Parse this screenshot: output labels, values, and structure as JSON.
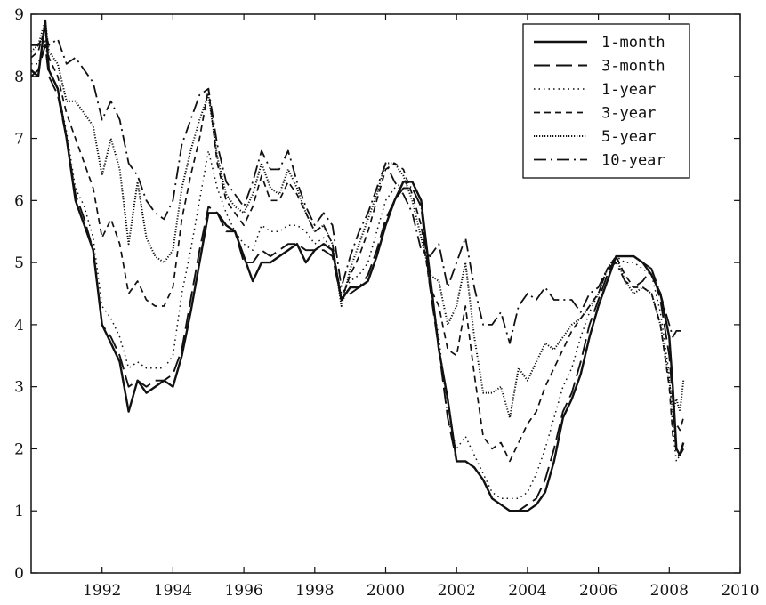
{
  "chart_data": {
    "type": "line",
    "title": "",
    "xlabel": "",
    "ylabel": "",
    "xlim": [
      1990,
      2010
    ],
    "ylim": [
      0,
      9
    ],
    "xticks": [
      1992,
      1994,
      1996,
      1998,
      2000,
      2002,
      2004,
      2006,
      2008,
      2010
    ],
    "yticks": [
      0,
      1,
      2,
      3,
      4,
      5,
      6,
      7,
      8,
      9
    ],
    "grid": false,
    "legend_position": "top-right",
    "series": [
      {
        "name": "1-month",
        "x": [
          1990.0,
          1990.2,
          1990.4,
          1990.5,
          1990.75,
          1991.0,
          1991.25,
          1991.5,
          1991.75,
          1992.0,
          1992.25,
          1992.5,
          1992.75,
          1993.0,
          1993.25,
          1993.5,
          1993.75,
          1994.0,
          1994.25,
          1994.5,
          1994.75,
          1995.0,
          1995.25,
          1995.5,
          1995.75,
          1996.0,
          1996.25,
          1996.5,
          1996.75,
          1997.0,
          1997.25,
          1997.5,
          1997.75,
          1998.0,
          1998.25,
          1998.5,
          1998.75,
          1999.0,
          1999.25,
          1999.5,
          1999.75,
          2000.0,
          2000.25,
          2000.5,
          2000.75,
          2001.0,
          2001.25,
          2001.5,
          2001.75,
          2002.0,
          2002.25,
          2002.5,
          2002.75,
          2003.0,
          2003.25,
          2003.5,
          2003.75,
          2004.0,
          2004.25,
          2004.5,
          2004.75,
          2005.0,
          2005.25,
          2005.5,
          2005.75,
          2006.0,
          2006.25,
          2006.5,
          2006.75,
          2007.0,
          2007.25,
          2007.5,
          2007.75,
          2008.0,
          2008.1,
          2008.2,
          2008.3,
          2008.4
        ],
        "values": [
          8.1,
          8.0,
          8.9,
          8.1,
          7.8,
          7.0,
          6.0,
          5.6,
          5.2,
          4.0,
          3.7,
          3.4,
          2.6,
          3.1,
          2.9,
          3.0,
          3.1,
          3.0,
          3.5,
          4.2,
          5.0,
          5.8,
          5.8,
          5.6,
          5.5,
          5.1,
          4.7,
          5.0,
          5.0,
          5.1,
          5.2,
          5.3,
          5.0,
          5.2,
          5.3,
          5.2,
          4.4,
          4.6,
          4.6,
          4.7,
          5.1,
          5.6,
          6.0,
          6.3,
          6.3,
          6.0,
          4.8,
          3.6,
          2.8,
          1.8,
          1.8,
          1.7,
          1.5,
          1.2,
          1.1,
          1.0,
          1.0,
          1.0,
          1.1,
          1.3,
          1.8,
          2.5,
          2.8,
          3.2,
          3.8,
          4.3,
          4.7,
          5.1,
          5.1,
          5.1,
          5.0,
          4.8,
          4.5,
          3.8,
          3.0,
          2.0,
          1.9,
          2.1
        ]
      },
      {
        "name": "3-month",
        "x": [
          1990.0,
          1990.2,
          1990.4,
          1990.5,
          1990.75,
          1991.0,
          1991.25,
          1991.5,
          1991.75,
          1992.0,
          1992.25,
          1992.5,
          1992.75,
          1993.0,
          1993.25,
          1993.5,
          1993.75,
          1994.0,
          1994.25,
          1994.5,
          1994.75,
          1995.0,
          1995.25,
          1995.5,
          1995.75,
          1996.0,
          1996.25,
          1996.5,
          1996.75,
          1997.0,
          1997.25,
          1997.5,
          1997.75,
          1998.0,
          1998.25,
          1998.5,
          1998.75,
          1999.0,
          1999.25,
          1999.5,
          1999.75,
          2000.0,
          2000.25,
          2000.5,
          2000.75,
          2001.0,
          2001.25,
          2001.5,
          2001.75,
          2002.0,
          2002.25,
          2002.5,
          2002.75,
          2003.0,
          2003.25,
          2003.5,
          2003.75,
          2004.0,
          2004.25,
          2004.5,
          2004.75,
          2005.0,
          2005.25,
          2005.5,
          2005.75,
          2006.0,
          2006.25,
          2006.5,
          2006.75,
          2007.0,
          2007.25,
          2007.5,
          2007.75,
          2008.0,
          2008.1,
          2008.2,
          2008.3,
          2008.4
        ],
        "values": [
          8.0,
          8.1,
          8.5,
          8.0,
          7.7,
          7.0,
          6.1,
          5.7,
          5.2,
          4.0,
          3.8,
          3.5,
          3.0,
          3.1,
          3.0,
          3.1,
          3.1,
          3.2,
          3.6,
          4.4,
          5.2,
          5.9,
          5.8,
          5.5,
          5.5,
          5.0,
          5.0,
          5.2,
          5.1,
          5.2,
          5.3,
          5.3,
          5.2,
          5.2,
          5.2,
          5.1,
          4.4,
          4.5,
          4.6,
          4.8,
          5.2,
          5.7,
          6.0,
          6.2,
          6.2,
          5.9,
          4.6,
          3.6,
          2.5,
          1.8,
          1.8,
          1.7,
          1.5,
          1.2,
          1.1,
          1.0,
          1.0,
          1.1,
          1.2,
          1.5,
          2.0,
          2.6,
          2.9,
          3.4,
          4.0,
          4.4,
          4.8,
          5.1,
          5.1,
          5.1,
          5.0,
          4.9,
          4.4,
          3.5,
          2.8,
          1.9,
          1.9,
          2.0
        ]
      },
      {
        "name": "1-year",
        "x": [
          1990.0,
          1990.2,
          1990.4,
          1990.5,
          1990.75,
          1991.0,
          1991.25,
          1991.5,
          1991.75,
          1992.0,
          1992.25,
          1992.5,
          1992.75,
          1993.0,
          1993.25,
          1993.5,
          1993.75,
          1994.0,
          1994.25,
          1994.5,
          1994.75,
          1995.0,
          1995.25,
          1995.5,
          1995.75,
          1996.0,
          1996.25,
          1996.5,
          1996.75,
          1997.0,
          1997.25,
          1997.5,
          1997.75,
          1998.0,
          1998.25,
          1998.5,
          1998.75,
          1999.0,
          1999.25,
          1999.5,
          1999.75,
          2000.0,
          2000.25,
          2000.5,
          2000.75,
          2001.0,
          2001.25,
          2001.5,
          2001.75,
          2002.0,
          2002.25,
          2002.5,
          2002.75,
          2003.0,
          2003.25,
          2003.5,
          2003.75,
          2004.0,
          2004.25,
          2004.5,
          2004.75,
          2005.0,
          2005.25,
          2005.5,
          2005.75,
          2006.0,
          2006.25,
          2006.5,
          2006.75,
          2007.0,
          2007.25,
          2007.5,
          2007.75,
          2008.0,
          2008.1,
          2008.2,
          2008.3,
          2008.4
        ],
        "values": [
          8.2,
          8.2,
          8.6,
          8.1,
          7.8,
          7.1,
          6.2,
          5.9,
          5.4,
          4.3,
          4.1,
          3.8,
          3.3,
          3.4,
          3.3,
          3.3,
          3.3,
          3.5,
          4.5,
          5.2,
          6.0,
          6.8,
          6.2,
          5.8,
          5.5,
          5.3,
          5.2,
          5.6,
          5.5,
          5.5,
          5.6,
          5.6,
          5.5,
          5.3,
          5.4,
          5.2,
          4.5,
          4.7,
          4.8,
          5.0,
          5.5,
          6.0,
          6.2,
          6.3,
          6.2,
          5.9,
          4.6,
          3.8,
          2.5,
          2.0,
          2.2,
          1.9,
          1.6,
          1.3,
          1.2,
          1.2,
          1.2,
          1.3,
          1.6,
          2.0,
          2.5,
          3.0,
          3.3,
          3.8,
          4.2,
          4.5,
          4.9,
          5.1,
          5.0,
          5.0,
          4.9,
          4.8,
          4.2,
          3.2,
          2.3,
          1.8,
          1.9,
          2.0
        ]
      },
      {
        "name": "3-year",
        "x": [
          1990.0,
          1990.2,
          1990.4,
          1990.5,
          1990.75,
          1991.0,
          1991.25,
          1991.5,
          1991.75,
          1992.0,
          1992.25,
          1992.5,
          1992.75,
          1993.0,
          1993.25,
          1993.5,
          1993.75,
          1994.0,
          1994.25,
          1994.5,
          1994.75,
          1995.0,
          1995.25,
          1995.5,
          1995.75,
          1996.0,
          1996.25,
          1996.5,
          1996.75,
          1997.0,
          1997.25,
          1997.5,
          1997.75,
          1998.0,
          1998.25,
          1998.5,
          1998.75,
          1999.0,
          1999.25,
          1999.5,
          1999.75,
          2000.0,
          2000.25,
          2000.5,
          2000.75,
          2001.0,
          2001.25,
          2001.5,
          2001.75,
          2002.0,
          2002.25,
          2002.5,
          2002.75,
          2003.0,
          2003.25,
          2003.5,
          2003.75,
          2004.0,
          2004.25,
          2004.5,
          2004.75,
          2005.0,
          2005.25,
          2005.5,
          2005.75,
          2006.0,
          2006.25,
          2006.5,
          2006.75,
          2007.0,
          2007.25,
          2007.5,
          2007.75,
          2008.0,
          2008.1,
          2008.2,
          2008.3,
          2008.4
        ],
        "values": [
          8.3,
          8.4,
          8.8,
          8.3,
          8.0,
          7.4,
          7.0,
          6.6,
          6.2,
          5.4,
          5.7,
          5.3,
          4.5,
          4.7,
          4.4,
          4.3,
          4.3,
          4.6,
          5.7,
          6.4,
          7.0,
          7.8,
          6.6,
          6.0,
          5.8,
          5.6,
          5.9,
          6.4,
          6.0,
          6.0,
          6.3,
          6.1,
          5.8,
          5.5,
          5.6,
          5.3,
          4.4,
          4.8,
          5.1,
          5.5,
          6.0,
          6.5,
          6.6,
          6.5,
          6.1,
          5.6,
          4.6,
          4.3,
          3.6,
          3.5,
          4.3,
          3.2,
          2.2,
          2.0,
          2.1,
          1.8,
          2.1,
          2.4,
          2.6,
          3.0,
          3.3,
          3.6,
          3.9,
          4.1,
          4.3,
          4.5,
          4.9,
          5.1,
          4.8,
          4.6,
          4.6,
          4.5,
          4.0,
          3.0,
          2.2,
          2.4,
          2.3,
          2.5
        ]
      },
      {
        "name": "5-year",
        "x": [
          1990.0,
          1990.2,
          1990.4,
          1990.5,
          1990.75,
          1991.0,
          1991.25,
          1991.5,
          1991.75,
          1992.0,
          1992.25,
          1992.5,
          1992.75,
          1993.0,
          1993.25,
          1993.5,
          1993.75,
          1994.0,
          1994.25,
          1994.5,
          1994.75,
          1995.0,
          1995.25,
          1995.5,
          1995.75,
          1996.0,
          1996.25,
          1996.5,
          1996.75,
          1997.0,
          1997.25,
          1997.5,
          1997.75,
          1998.0,
          1998.25,
          1998.5,
          1998.75,
          1999.0,
          1999.25,
          1999.5,
          1999.75,
          2000.0,
          2000.25,
          2000.5,
          2000.75,
          2001.0,
          2001.25,
          2001.5,
          2001.75,
          2002.0,
          2002.25,
          2002.5,
          2002.75,
          2003.0,
          2003.25,
          2003.5,
          2003.75,
          2004.0,
          2004.25,
          2004.5,
          2004.75,
          2005.0,
          2005.25,
          2005.5,
          2005.75,
          2006.0,
          2006.25,
          2006.5,
          2006.75,
          2007.0,
          2007.25,
          2007.5,
          2007.75,
          2008.0,
          2008.1,
          2008.2,
          2008.3,
          2008.4
        ],
        "values": [
          8.4,
          8.5,
          8.9,
          8.4,
          8.2,
          7.6,
          7.6,
          7.4,
          7.2,
          6.4,
          7.0,
          6.5,
          5.3,
          6.3,
          5.4,
          5.1,
          5.0,
          5.2,
          6.2,
          6.8,
          7.3,
          7.7,
          6.7,
          6.1,
          5.9,
          5.8,
          6.1,
          6.6,
          6.2,
          6.1,
          6.5,
          6.2,
          5.8,
          5.5,
          5.6,
          5.3,
          4.3,
          4.9,
          5.3,
          5.7,
          6.1,
          6.6,
          6.6,
          6.4,
          6.0,
          5.4,
          4.8,
          4.7,
          4.0,
          4.3,
          5.0,
          3.8,
          2.9,
          2.9,
          3.0,
          2.5,
          3.3,
          3.1,
          3.4,
          3.7,
          3.6,
          3.8,
          4.0,
          4.1,
          4.3,
          4.5,
          4.9,
          5.1,
          4.7,
          4.5,
          4.6,
          4.5,
          4.0,
          3.1,
          2.6,
          2.8,
          2.6,
          3.1
        ]
      },
      {
        "name": "10-year",
        "x": [
          1990.0,
          1990.2,
          1990.4,
          1990.5,
          1990.75,
          1991.0,
          1991.25,
          1991.5,
          1991.75,
          1992.0,
          1992.25,
          1992.5,
          1992.75,
          1993.0,
          1993.25,
          1993.5,
          1993.75,
          1994.0,
          1994.25,
          1994.5,
          1994.75,
          1995.0,
          1995.25,
          1995.5,
          1995.75,
          1996.0,
          1996.25,
          1996.5,
          1996.75,
          1997.0,
          1997.25,
          1997.5,
          1997.75,
          1998.0,
          1998.25,
          1998.5,
          1998.75,
          1999.0,
          1999.25,
          1999.5,
          1999.75,
          2000.0,
          2000.25,
          2000.5,
          2000.75,
          2001.0,
          2001.25,
          2001.5,
          2001.75,
          2002.0,
          2002.25,
          2002.5,
          2002.75,
          2003.0,
          2003.25,
          2003.5,
          2003.75,
          2004.0,
          2004.25,
          2004.5,
          2004.75,
          2005.0,
          2005.25,
          2005.5,
          2005.75,
          2006.0,
          2006.25,
          2006.5,
          2006.75,
          2007.0,
          2007.25,
          2007.5,
          2007.75,
          2008.0,
          2008.1,
          2008.2,
          2008.3,
          2008.4
        ],
        "values": [
          8.5,
          8.5,
          8.7,
          8.5,
          8.6,
          8.2,
          8.3,
          8.1,
          7.9,
          7.3,
          7.6,
          7.3,
          6.6,
          6.4,
          6.0,
          5.8,
          5.7,
          6.0,
          6.9,
          7.3,
          7.7,
          7.8,
          6.9,
          6.3,
          6.1,
          5.9,
          6.3,
          6.8,
          6.5,
          6.5,
          6.8,
          6.3,
          5.9,
          5.6,
          5.8,
          5.6,
          4.6,
          5.1,
          5.5,
          5.8,
          6.2,
          6.6,
          6.3,
          6.1,
          5.8,
          5.2,
          5.1,
          5.3,
          4.6,
          5.0,
          5.4,
          4.6,
          4.0,
          4.0,
          4.2,
          3.7,
          4.3,
          4.5,
          4.4,
          4.6,
          4.4,
          4.4,
          4.4,
          4.2,
          4.5,
          4.6,
          4.9,
          5.0,
          4.7,
          4.6,
          4.7,
          4.9,
          4.5,
          4.0,
          3.8,
          3.9,
          3.9,
          3.9
        ]
      }
    ]
  }
}
